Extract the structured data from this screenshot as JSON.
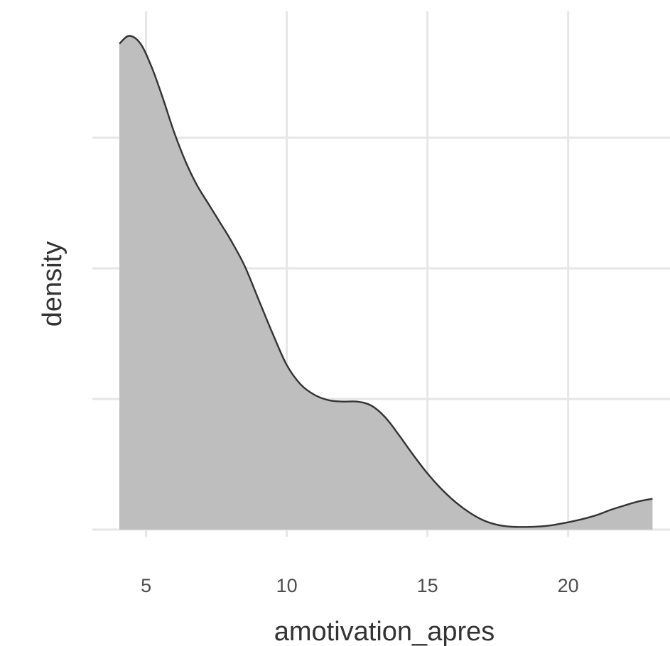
{
  "chart_data": {
    "type": "area",
    "title": "",
    "xlabel": "amotivation_apres",
    "ylabel": "density",
    "xlim": [
      3.2,
      23.6
    ],
    "ylim": [
      -0.002,
      0.18
    ],
    "x_ticks": [
      5,
      10,
      15,
      20
    ],
    "x_tick_labels": [
      "5",
      "10",
      "15",
      "20"
    ],
    "y_gridlines": [
      0.0,
      0.05,
      0.1,
      0.15
    ],
    "y_tick_labels_shown": false,
    "grid": true,
    "legend": "none",
    "fill_color": "#bebebe",
    "line_color": "#333333",
    "grid_color": "#e6e6e6",
    "series": [
      {
        "x": [
          4.05,
          4.4,
          4.8,
          5.2,
          5.6,
          6.0,
          6.4,
          6.8,
          7.2,
          7.6,
          8.0,
          8.5,
          9.0,
          9.5,
          10.0,
          10.5,
          11.0,
          11.5,
          12.0,
          12.5,
          13.0,
          13.5,
          14.0,
          14.5,
          15.0,
          15.5,
          16.0,
          16.5,
          17.0,
          17.5,
          18.0,
          18.5,
          19.0,
          19.5,
          20.0,
          20.5,
          21.0,
          21.5,
          22.0,
          22.5,
          23.0
        ],
        "values": [
          0.186,
          0.189,
          0.186,
          0.177,
          0.165,
          0.152,
          0.141,
          0.132,
          0.125,
          0.118,
          0.111,
          0.101,
          0.088,
          0.075,
          0.063,
          0.0555,
          0.0515,
          0.0495,
          0.049,
          0.049,
          0.0475,
          0.043,
          0.036,
          0.0285,
          0.0215,
          0.0155,
          0.0105,
          0.0065,
          0.0035,
          0.0018,
          0.0011,
          0.001,
          0.0012,
          0.0018,
          0.0028,
          0.004,
          0.0055,
          0.0075,
          0.0092,
          0.0108,
          0.0118
        ]
      }
    ]
  }
}
